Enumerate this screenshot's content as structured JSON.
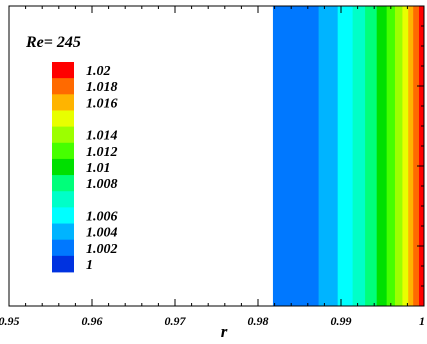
{
  "chart_data": {
    "type": "heatmap",
    "annotation": "Re= 245",
    "xlabel": "r",
    "xlim": [
      0.95,
      1.0
    ],
    "x_ticks": [
      {
        "value": 0.95,
        "label": "0.95"
      },
      {
        "value": 0.96,
        "label": "0.96"
      },
      {
        "value": 0.97,
        "label": "0.97"
      },
      {
        "value": 0.98,
        "label": "0.98"
      },
      {
        "value": 0.99,
        "label": "0.99"
      },
      {
        "value": 1.0,
        "label": "1"
      }
    ],
    "levels": [
      {
        "label": "1.02",
        "value": 1.02,
        "color": "#ff0000"
      },
      {
        "label": "1.018",
        "value": 1.018,
        "color": "#ff6a00"
      },
      {
        "label": "1.016",
        "value": 1.016,
        "color": "#ffb400"
      },
      {
        "label": "",
        "value": 1.015,
        "color": "#e8ff00"
      },
      {
        "label": "1.014",
        "value": 1.014,
        "color": "#9cff00"
      },
      {
        "label": "1.012",
        "value": 1.012,
        "color": "#46ff00"
      },
      {
        "label": "1.01",
        "value": 1.01,
        "color": "#00e000"
      },
      {
        "label": "1.008",
        "value": 1.008,
        "color": "#00ff7a"
      },
      {
        "label": "",
        "value": 1.007,
        "color": "#00ffc8"
      },
      {
        "label": "1.006",
        "value": 1.006,
        "color": "#00ffff"
      },
      {
        "label": "1.004",
        "value": 1.004,
        "color": "#00b4ff"
      },
      {
        "label": "1.002",
        "value": 1.002,
        "color": "#0078ff"
      },
      {
        "label": "1",
        "value": 1.0,
        "color": "#0032e0"
      }
    ],
    "bands": [
      {
        "x0": 0.9818,
        "x1": 0.9873,
        "color": "#0078ff"
      },
      {
        "x0": 0.9873,
        "x1": 0.9896,
        "color": "#00b4ff"
      },
      {
        "x0": 0.9896,
        "x1": 0.9914,
        "color": "#00ffff"
      },
      {
        "x0": 0.9914,
        "x1": 0.9929,
        "color": "#00ffc8"
      },
      {
        "x0": 0.9929,
        "x1": 0.9943,
        "color": "#00ff7a"
      },
      {
        "x0": 0.9943,
        "x1": 0.9955,
        "color": "#00e000"
      },
      {
        "x0": 0.9955,
        "x1": 0.9965,
        "color": "#46ff00"
      },
      {
        "x0": 0.9965,
        "x1": 0.9974,
        "color": "#9cff00"
      },
      {
        "x0": 0.9974,
        "x1": 0.9981,
        "color": "#e8ff00"
      },
      {
        "x0": 0.9981,
        "x1": 0.9987,
        "color": "#ffb400"
      },
      {
        "x0": 0.9987,
        "x1": 0.9994,
        "color": "#ff6a00"
      },
      {
        "x0": 0.9994,
        "x1": 1.0,
        "color": "#ff0000"
      }
    ]
  }
}
